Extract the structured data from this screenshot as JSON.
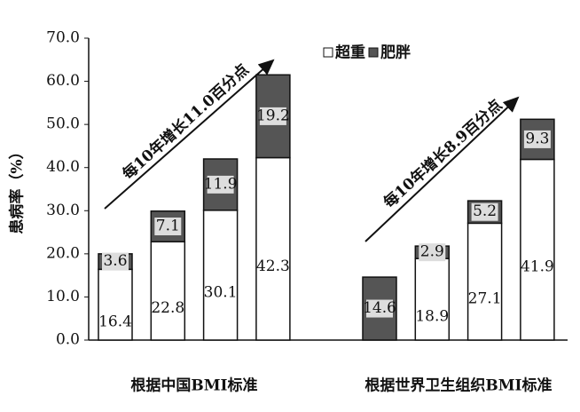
{
  "chart_data": {
    "type": "stacked-bar",
    "ylabel": "患病率（%）",
    "categories": [
      null,
      null,
      null,
      null,
      null,
      null,
      null,
      null
    ],
    "group_labels": [
      "根据中国BMI标准",
      "根据世界卫生组织BMI标准"
    ],
    "series": [
      {
        "name": "超重",
        "color": "#ffffff",
        "values": [
          16.4,
          22.8,
          30.1,
          42.3,
          null,
          18.9,
          27.1,
          41.9
        ]
      },
      {
        "name": "肥胖",
        "color": "#555555",
        "values": [
          3.6,
          7.1,
          11.9,
          19.2,
          14.6,
          2.9,
          5.2,
          9.3
        ]
      }
    ],
    "ylim": [
      0,
      70
    ],
    "yticks": [
      {
        "value": 0,
        "label": "0.0"
      },
      {
        "value": 10,
        "label": "10.0"
      },
      {
        "value": 20,
        "label": "20.0"
      },
      {
        "value": 30,
        "label": "30.0"
      },
      {
        "value": 40,
        "label": "40.0"
      },
      {
        "value": 50,
        "label": "50.0"
      },
      {
        "value": 60,
        "label": "60.0"
      },
      {
        "value": 70,
        "label": "70.0"
      }
    ],
    "annotations": [
      "每10年增长11.0百分点",
      "每10年增长8.9百分点"
    ]
  }
}
